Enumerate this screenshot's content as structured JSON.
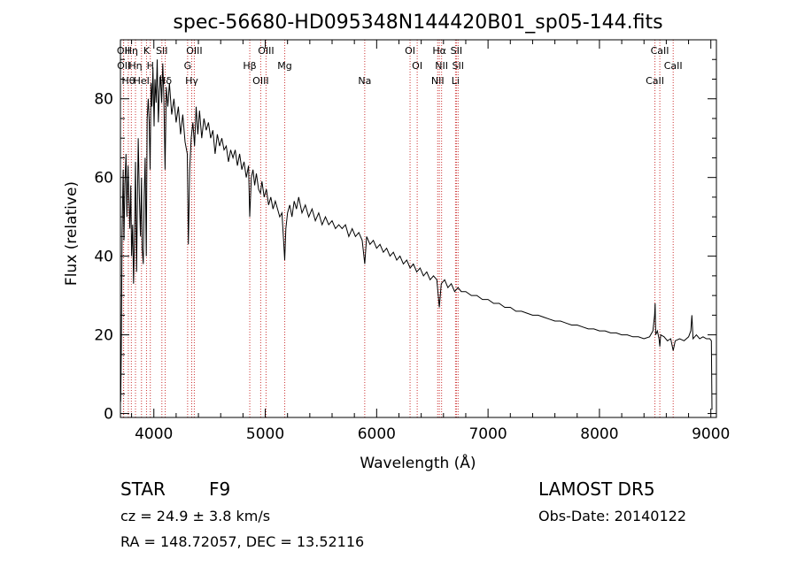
{
  "chart_data": {
    "type": "line",
    "title": "spec-56680-HD095348N144420B01_sp05-144.fits",
    "xlabel": "Wavelength (Å)",
    "ylabel": "Flux (relative)",
    "xlim": [
      3700,
      9050
    ],
    "ylim": [
      -1,
      95
    ],
    "xticks": [
      "4000",
      "5000",
      "6000",
      "7000",
      "8000",
      "9000"
    ],
    "yticks": [
      "0",
      "20",
      "40",
      "60",
      "80"
    ],
    "grid": false,
    "legend": "none",
    "line_color": "#000000",
    "marker_color": "#cc3333",
    "series": [
      {
        "points": [
          [
            3702,
            3
          ],
          [
            3708,
            17
          ],
          [
            3715,
            46
          ],
          [
            3725,
            62
          ],
          [
            3732,
            44
          ],
          [
            3740,
            58
          ],
          [
            3750,
            66
          ],
          [
            3758,
            50
          ],
          [
            3768,
            63
          ],
          [
            3776,
            54
          ],
          [
            3784,
            47
          ],
          [
            3793,
            58
          ],
          [
            3800,
            40
          ],
          [
            3810,
            48
          ],
          [
            3818,
            33
          ],
          [
            3826,
            45
          ],
          [
            3835,
            64
          ],
          [
            3845,
            36
          ],
          [
            3852,
            52
          ],
          [
            3860,
            70
          ],
          [
            3870,
            55
          ],
          [
            3880,
            45
          ],
          [
            3889,
            60
          ],
          [
            3895,
            42
          ],
          [
            3905,
            38
          ],
          [
            3913,
            55
          ],
          [
            3922,
            65
          ],
          [
            3932,
            40
          ],
          [
            3940,
            75
          ],
          [
            3950,
            80
          ],
          [
            3958,
            74
          ],
          [
            3966,
            62
          ],
          [
            3975,
            84
          ],
          [
            3983,
            78
          ],
          [
            3992,
            88
          ],
          [
            4002,
            73
          ],
          [
            4010,
            85
          ],
          [
            4020,
            79
          ],
          [
            4030,
            90
          ],
          [
            4040,
            74
          ],
          [
            4050,
            82
          ],
          [
            4060,
            86
          ],
          [
            4070,
            79
          ],
          [
            4080,
            89
          ],
          [
            4090,
            80
          ],
          [
            4101,
            62
          ],
          [
            4112,
            83
          ],
          [
            4125,
            78
          ],
          [
            4140,
            84
          ],
          [
            4160,
            76
          ],
          [
            4180,
            80
          ],
          [
            4200,
            74
          ],
          [
            4220,
            78
          ],
          [
            4240,
            71
          ],
          [
            4260,
            76
          ],
          [
            4280,
            69
          ],
          [
            4300,
            66
          ],
          [
            4310,
            43
          ],
          [
            4322,
            62
          ],
          [
            4335,
            70
          ],
          [
            4350,
            74
          ],
          [
            4365,
            68
          ],
          [
            4380,
            78
          ],
          [
            4395,
            71
          ],
          [
            4410,
            77
          ],
          [
            4430,
            70
          ],
          [
            4450,
            75
          ],
          [
            4470,
            72
          ],
          [
            4490,
            74
          ],
          [
            4510,
            70
          ],
          [
            4530,
            72
          ],
          [
            4550,
            66
          ],
          [
            4570,
            71
          ],
          [
            4590,
            68
          ],
          [
            4610,
            70
          ],
          [
            4630,
            67
          ],
          [
            4650,
            68
          ],
          [
            4670,
            64
          ],
          [
            4690,
            67
          ],
          [
            4710,
            65
          ],
          [
            4730,
            67
          ],
          [
            4750,
            63
          ],
          [
            4770,
            66
          ],
          [
            4790,
            62
          ],
          [
            4810,
            64
          ],
          [
            4830,
            60
          ],
          [
            4850,
            63
          ],
          [
            4861,
            50
          ],
          [
            4875,
            60
          ],
          [
            4890,
            62
          ],
          [
            4905,
            58
          ],
          [
            4920,
            61
          ],
          [
            4940,
            57
          ],
          [
            4957,
            56
          ],
          [
            4970,
            59
          ],
          [
            4990,
            55
          ],
          [
            5010,
            57
          ],
          [
            5030,
            53
          ],
          [
            5050,
            55
          ],
          [
            5070,
            52
          ],
          [
            5090,
            54
          ],
          [
            5110,
            52
          ],
          [
            5130,
            50
          ],
          [
            5150,
            51
          ],
          [
            5167,
            43
          ],
          [
            5175,
            39
          ],
          [
            5185,
            47
          ],
          [
            5200,
            51
          ],
          [
            5220,
            53
          ],
          [
            5240,
            50
          ],
          [
            5260,
            54
          ],
          [
            5280,
            52
          ],
          [
            5300,
            55
          ],
          [
            5330,
            51
          ],
          [
            5360,
            53
          ],
          [
            5390,
            50
          ],
          [
            5420,
            52
          ],
          [
            5450,
            49
          ],
          [
            5480,
            51
          ],
          [
            5510,
            48
          ],
          [
            5540,
            50
          ],
          [
            5570,
            48
          ],
          [
            5600,
            49
          ],
          [
            5630,
            47
          ],
          [
            5660,
            48
          ],
          [
            5690,
            47
          ],
          [
            5720,
            48
          ],
          [
            5750,
            45
          ],
          [
            5780,
            47
          ],
          [
            5810,
            45
          ],
          [
            5840,
            46
          ],
          [
            5870,
            44
          ],
          [
            5893,
            38
          ],
          [
            5910,
            45
          ],
          [
            5940,
            43
          ],
          [
            5970,
            44
          ],
          [
            6000,
            42
          ],
          [
            6030,
            43
          ],
          [
            6060,
            41
          ],
          [
            6090,
            42
          ],
          [
            6120,
            40
          ],
          [
            6150,
            41
          ],
          [
            6180,
            39
          ],
          [
            6210,
            40
          ],
          [
            6240,
            38
          ],
          [
            6270,
            39
          ],
          [
            6300,
            37
          ],
          [
            6330,
            38
          ],
          [
            6360,
            36
          ],
          [
            6390,
            37
          ],
          [
            6420,
            35
          ],
          [
            6450,
            36
          ],
          [
            6480,
            34
          ],
          [
            6510,
            35
          ],
          [
            6540,
            34
          ],
          [
            6563,
            27
          ],
          [
            6580,
            33
          ],
          [
            6610,
            34
          ],
          [
            6640,
            32
          ],
          [
            6670,
            33
          ],
          [
            6700,
            31
          ],
          [
            6730,
            32
          ],
          [
            6760,
            31
          ],
          [
            6800,
            31
          ],
          [
            6850,
            30
          ],
          [
            6900,
            30
          ],
          [
            6950,
            29
          ],
          [
            7000,
            29
          ],
          [
            7050,
            28
          ],
          [
            7100,
            28
          ],
          [
            7150,
            27
          ],
          [
            7200,
            27
          ],
          [
            7250,
            26
          ],
          [
            7300,
            26
          ],
          [
            7350,
            25.5
          ],
          [
            7400,
            25
          ],
          [
            7450,
            25
          ],
          [
            7500,
            24.5
          ],
          [
            7550,
            24
          ],
          [
            7600,
            23.5
          ],
          [
            7650,
            23.5
          ],
          [
            7700,
            23
          ],
          [
            7750,
            22.5
          ],
          [
            7800,
            22.5
          ],
          [
            7850,
            22
          ],
          [
            7900,
            21.5
          ],
          [
            7950,
            21.5
          ],
          [
            8000,
            21
          ],
          [
            8050,
            21
          ],
          [
            8100,
            20.5
          ],
          [
            8150,
            20.5
          ],
          [
            8200,
            20
          ],
          [
            8250,
            20
          ],
          [
            8300,
            19.5
          ],
          [
            8350,
            19.5
          ],
          [
            8400,
            19
          ],
          [
            8450,
            19.5
          ],
          [
            8480,
            21
          ],
          [
            8495,
            25
          ],
          [
            8500,
            28
          ],
          [
            8505,
            20
          ],
          [
            8520,
            21
          ],
          [
            8535,
            19
          ],
          [
            8542,
            17
          ],
          [
            8550,
            20
          ],
          [
            8580,
            19.5
          ],
          [
            8610,
            18.5
          ],
          [
            8640,
            19
          ],
          [
            8662,
            16
          ],
          [
            8680,
            18.5
          ],
          [
            8720,
            19
          ],
          [
            8760,
            18.5
          ],
          [
            8800,
            19.5
          ],
          [
            8820,
            21
          ],
          [
            8830,
            25
          ],
          [
            8840,
            19
          ],
          [
            8870,
            20
          ],
          [
            8900,
            19
          ],
          [
            8930,
            19.5
          ],
          [
            8960,
            19
          ],
          [
            8990,
            19
          ],
          [
            9005,
            18.5
          ],
          [
            9010,
            1
          ]
        ]
      }
    ],
    "line_markers": [
      {
        "x": 3727,
        "label": "OII"
      },
      {
        "x": 3729,
        "label": "OII"
      },
      {
        "x": 3771,
        "label": "Hθ"
      },
      {
        "x": 3798,
        "label": "Hη"
      },
      {
        "x": 3835,
        "label": "Hη"
      },
      {
        "x": 3889,
        "label": "HeI"
      },
      {
        "x": 3934,
        "label": "K"
      },
      {
        "x": 3968,
        "label": "H"
      },
      {
        "x": 4102,
        "label": "Hδ"
      },
      {
        "x": 4072,
        "label": "SII"
      },
      {
        "x": 4303,
        "label": "G"
      },
      {
        "x": 4340,
        "label": "Hγ"
      },
      {
        "x": 4363,
        "label": "OIII"
      },
      {
        "x": 4861,
        "label": "Hβ"
      },
      {
        "x": 4959,
        "label": "OIII"
      },
      {
        "x": 5007,
        "label": "OIII"
      },
      {
        "x": 5175,
        "label": "Mg"
      },
      {
        "x": 5893,
        "label": "Na"
      },
      {
        "x": 6300,
        "label": "OI"
      },
      {
        "x": 6364,
        "label": "OI"
      },
      {
        "x": 6548,
        "label": "NII"
      },
      {
        "x": 6563,
        "label": "Hα"
      },
      {
        "x": 6583,
        "label": "NII"
      },
      {
        "x": 6708,
        "label": "Li"
      },
      {
        "x": 6716,
        "label": "SII"
      },
      {
        "x": 6731,
        "label": "SII"
      },
      {
        "x": 8498,
        "label": "CaII"
      },
      {
        "x": 8542,
        "label": "CaII"
      },
      {
        "x": 8662,
        "label": "CaII"
      }
    ]
  },
  "info": {
    "class_label": "STAR",
    "subclass": "F9",
    "survey": "LAMOST DR5",
    "cz": "cz = 24.9 ± 3.8 km/s",
    "obs_date": "Obs-Date: 20140122",
    "coords": "RA = 148.72057, DEC =  13.52116"
  }
}
